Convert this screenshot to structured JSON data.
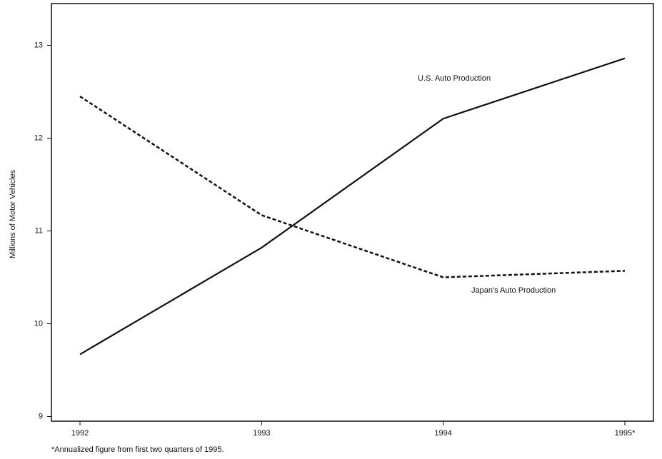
{
  "chart_data": {
    "type": "line",
    "y_label": "Millions of Motor Vehicles",
    "footnote": "*Annualized figure from first two quarters of 1995.",
    "categories": [
      "1992",
      "1993",
      "1994",
      "1995*"
    ],
    "series": [
      {
        "name": "U.S. Auto Production",
        "color": "#111111",
        "style": "solid",
        "values": [
          9.67,
          10.82,
          12.21,
          12.86
        ]
      },
      {
        "name": "Japan's Auto Production",
        "color": "#111111",
        "style": "dashed",
        "values": [
          12.45,
          11.17,
          10.5,
          10.57
        ]
      }
    ],
    "ylim": [
      8.95,
      13.45
    ],
    "yticks": [
      9,
      10,
      11,
      12,
      13
    ],
    "grid": false
  }
}
